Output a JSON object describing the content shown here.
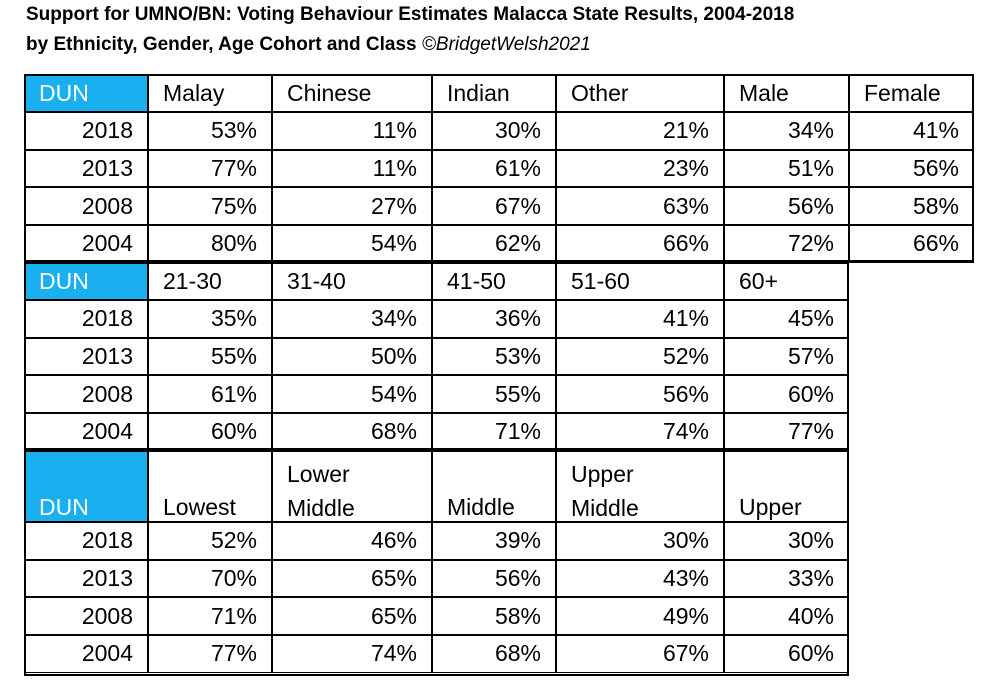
{
  "title_line1": "Support for UMNO/BN: Voting Behaviour Estimates Malacca State Results, 2004-2018",
  "title_line2": "by Ethnicity, Gender, Age Cohort and Class",
  "credit": "©BridgetWelsh2021",
  "colors": {
    "dun_header_bg": "#1ab0f0",
    "dun_header_text": "#ffffff",
    "border": "#000000"
  },
  "chart_data": {
    "type": "table",
    "sections": [
      {
        "columns": [
          "DUN",
          "Malay",
          "Chinese",
          "Indian",
          "Other",
          "Male",
          "Female"
        ],
        "rows": [
          [
            "2018",
            "53%",
            "11%",
            "30%",
            "21%",
            "34%",
            "41%"
          ],
          [
            "2013",
            "77%",
            "11%",
            "61%",
            "23%",
            "51%",
            "56%"
          ],
          [
            "2008",
            "75%",
            "27%",
            "67%",
            "63%",
            "56%",
            "58%"
          ],
          [
            "2004",
            "80%",
            "54%",
            "62%",
            "66%",
            "72%",
            "66%"
          ]
        ]
      },
      {
        "columns": [
          "DUN",
          "21-30",
          "31-40",
          "41-50",
          "51-60",
          "60+"
        ],
        "rows": [
          [
            "2018",
            "35%",
            "34%",
            "36%",
            "41%",
            "45%"
          ],
          [
            "2013",
            "55%",
            "50%",
            "53%",
            "52%",
            "57%"
          ],
          [
            "2008",
            "61%",
            "54%",
            "55%",
            "56%",
            "60%"
          ],
          [
            "2004",
            "60%",
            "68%",
            "71%",
            "74%",
            "77%"
          ]
        ]
      },
      {
        "columns": [
          "DUN",
          "Lowest",
          "Lower\nMiddle",
          "Middle",
          "Upper\nMiddle",
          "Upper"
        ],
        "rows": [
          [
            "2018",
            "52%",
            "46%",
            "39%",
            "30%",
            "30%"
          ],
          [
            "2013",
            "70%",
            "65%",
            "56%",
            "43%",
            "33%"
          ],
          [
            "2008",
            "71%",
            "65%",
            "58%",
            "49%",
            "40%"
          ],
          [
            "2004",
            "77%",
            "74%",
            "68%",
            "67%",
            "60%"
          ]
        ]
      }
    ]
  }
}
